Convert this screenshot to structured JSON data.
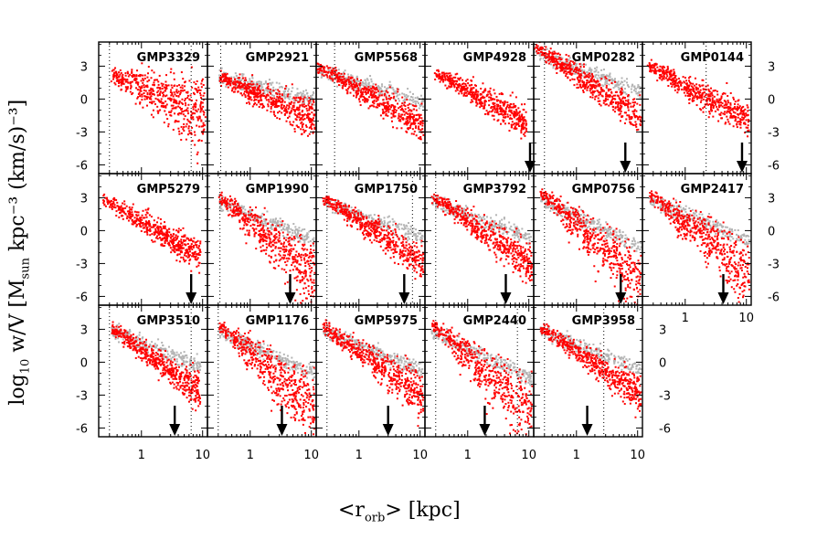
{
  "chart_data": {
    "type": "scatter",
    "title": "",
    "xlabel": "<r_orb> [kpc]",
    "ylabel": "log10 w/V [M_sun kpc^-3 (km/s)^-3]",
    "xlabel_parts": {
      "pre": "<r",
      "sub": "orb",
      "post": "> [kpc]"
    },
    "ylabel_parts": {
      "a": "log",
      "a_sub": "10",
      "b": " w/V [M",
      "b_sub": "sun",
      "c": " kpc⁻³ (km/s)⁻³]"
    },
    "xscale": "log",
    "xlim": [
      0.2,
      12
    ],
    "ylim": [
      -6.8,
      5.2
    ],
    "xticks": [
      1,
      10
    ],
    "xtick_labels": [
      "1",
      "10"
    ],
    "yticks": [
      3,
      0,
      -3,
      -6
    ],
    "ytick_labels": [
      "3",
      "0",
      "-3",
      "-6"
    ],
    "series": [
      {
        "name": "red points",
        "color": "#ff0000"
      },
      {
        "name": "grey points",
        "color": "#b4b4b4"
      }
    ],
    "panels": [
      {
        "name": "GMP3329",
        "a0": 1.2,
        "slope": -2.2,
        "spread": 2.0,
        "xmin": 0.3,
        "xmax": 11.0,
        "dash1": 0.3,
        "dash2": 6.5,
        "arrow": null,
        "grey": false,
        "scatter": true
      },
      {
        "name": "GMP2921",
        "a0": 0.8,
        "slope": -2.4,
        "spread": 1.0,
        "xmin": 0.3,
        "xmax": 11.0,
        "dash1": 0.33,
        "dash2": null,
        "arrow": null,
        "grey": true
      },
      {
        "name": "GMP5568",
        "a0": 0.9,
        "slope": -3.1,
        "spread": 0.8,
        "xmin": 0.2,
        "xmax": 11.0,
        "dash1": 0.4,
        "dash2": null,
        "arrow": null,
        "grey": true
      },
      {
        "name": "GMP4928",
        "a0": 0.8,
        "slope": -3.0,
        "spread": 0.8,
        "xmin": 0.28,
        "xmax": 9.0,
        "dash1": null,
        "dash2": null,
        "arrow": 11.8,
        "grey": false
      },
      {
        "name": "GMP0282",
        "a0": 2.3,
        "slope": -3.8,
        "spread": 0.9,
        "xmin": 0.2,
        "xmax": 11.0,
        "dash1": 0.3,
        "dash2": null,
        "arrow": 6.3,
        "grey": true
      },
      {
        "name": "GMP0144",
        "a0": 1.2,
        "slope": -3.0,
        "spread": 0.9,
        "xmin": 0.23,
        "xmax": 11.0,
        "dash1": null,
        "dash2": 2.2,
        "arrow": 8.5,
        "grey": false
      },
      {
        "name": "GMP5279",
        "a0": 0.9,
        "slope": -3.3,
        "spread": 0.8,
        "xmin": 0.23,
        "xmax": 9.0,
        "dash1": null,
        "dash2": null,
        "arrow": 6.5,
        "grey": false
      },
      {
        "name": "GMP1990",
        "a0": 0.9,
        "slope": -4.2,
        "spread": 1.6,
        "xmin": 0.3,
        "xmax": 11.0,
        "dash1": 0.32,
        "dash2": null,
        "arrow": 4.5,
        "grey": true
      },
      {
        "name": "GMP1750",
        "a0": 0.9,
        "slope": -3.6,
        "spread": 0.8,
        "xmin": 0.25,
        "xmax": 11.0,
        "dash1": 0.3,
        "dash2": 7.5,
        "arrow": 5.5,
        "grey": true
      },
      {
        "name": "GMP3792",
        "a0": 0.9,
        "slope": -3.8,
        "spread": 1.0,
        "xmin": 0.25,
        "xmax": 11.0,
        "dash1": 0.3,
        "dash2": null,
        "arrow": 4.2,
        "grey": true
      },
      {
        "name": "GMP0756",
        "a0": 0.7,
        "slope": -4.8,
        "spread": 1.7,
        "xmin": 0.25,
        "xmax": 11.0,
        "dash1": 0.3,
        "dash2": null,
        "arrow": 5.3,
        "grey": true
      },
      {
        "name": "GMP2417",
        "a0": 0.9,
        "slope": -4.0,
        "spread": 1.4,
        "xmin": 0.25,
        "xmax": 11.0,
        "dash1": null,
        "dash2": null,
        "arrow": 4.2,
        "grey": true
      },
      {
        "name": "GMP3510",
        "a0": 1.2,
        "slope": -4.0,
        "spread": 0.9,
        "xmin": 0.3,
        "xmax": 9.0,
        "dash1": 0.3,
        "dash2": 6.5,
        "arrow": 3.5,
        "grey": true
      },
      {
        "name": "GMP1176",
        "a0": 1.0,
        "slope": -4.6,
        "spread": 1.7,
        "xmin": 0.3,
        "xmax": 11.0,
        "dash1": 0.3,
        "dash2": null,
        "arrow": 3.3,
        "grey": true
      },
      {
        "name": "GMP5975",
        "a0": 1.0,
        "slope": -3.9,
        "spread": 1.1,
        "xmin": 0.25,
        "xmax": 11.0,
        "dash1": 0.3,
        "dash2": null,
        "arrow": 3.0,
        "grey": true
      },
      {
        "name": "GMP2440",
        "a0": 0.7,
        "slope": -4.8,
        "spread": 1.8,
        "xmin": 0.25,
        "xmax": 11.0,
        "dash1": 0.3,
        "dash2": 6.5,
        "arrow": 1.9,
        "grey": true
      },
      {
        "name": "GMP3958",
        "a0": 1.0,
        "slope": -3.7,
        "spread": 0.8,
        "xmin": 0.25,
        "xmax": 11.0,
        "dash1": 0.3,
        "dash2": 2.8,
        "arrow": 1.5,
        "grey": true
      }
    ]
  }
}
